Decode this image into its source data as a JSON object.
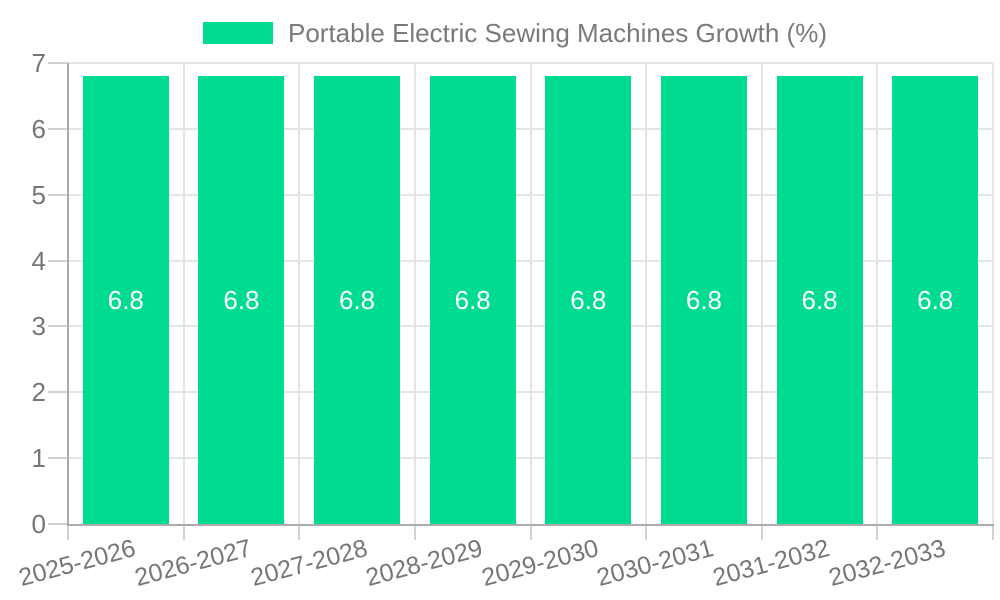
{
  "legend": {
    "label": "Portable Electric Sewing Machines Growth (%)"
  },
  "chart_data": {
    "type": "bar",
    "title": "Portable Electric Sewing Machines Growth (%)",
    "categories": [
      "2025-2026",
      "2026-2027",
      "2027-2028",
      "2028-2029",
      "2029-2030",
      "2030-2031",
      "2031-2032",
      "2032-2033"
    ],
    "values": [
      6.8,
      6.8,
      6.8,
      6.8,
      6.8,
      6.8,
      6.8,
      6.8
    ],
    "value_labels": [
      "6.8",
      "6.8",
      "6.8",
      "6.8",
      "6.8",
      "6.8",
      "6.8",
      "6.8"
    ],
    "xlabel": "",
    "ylabel": "",
    "ylim": [
      0,
      7
    ],
    "yticks": [
      0,
      1,
      2,
      3,
      4,
      5,
      6,
      7
    ],
    "grid": true,
    "legend_position": "top",
    "x_label_rotation_deg": -15,
    "colors": {
      "bar": "#00DB92",
      "value_label": "#ffffff",
      "axis_line": "#ababab",
      "gridline": "#e4e4e4",
      "tick": "#d2d2d2",
      "axis_text": "#767676",
      "legend_text": "#7a7a7a",
      "background": "#ffffff"
    }
  }
}
